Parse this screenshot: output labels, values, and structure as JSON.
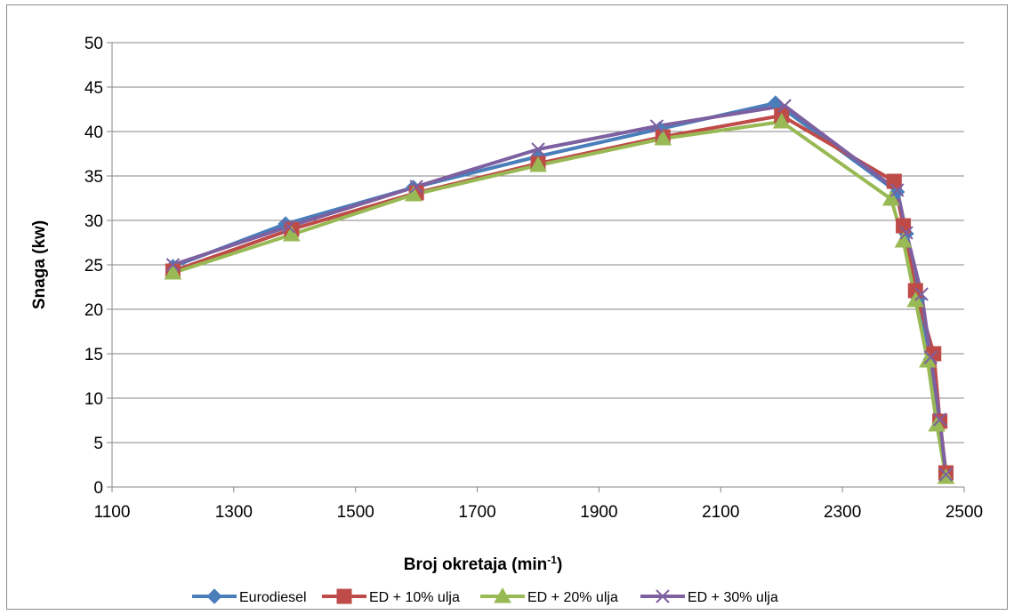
{
  "chart_data": {
    "type": "line",
    "title": "",
    "xlabel": "Broj okretaja (min",
    "xlabel_sup": "-1",
    "xlabel_close": ")",
    "ylabel": "Snaga (kw)",
    "xlim": [
      1100,
      2500
    ],
    "ylim": [
      0,
      50
    ],
    "x_ticks": [
      "1100",
      "1300",
      "1500",
      "1700",
      "1900",
      "2100",
      "2300",
      "2500"
    ],
    "y_ticks": [
      "0",
      "5",
      "10",
      "15",
      "20",
      "25",
      "30",
      "35",
      "40",
      "45",
      "50"
    ],
    "grid": "horizontal",
    "legend_position": "bottom",
    "series": [
      {
        "name": "Eurodiesel",
        "color": "#4a7ebb",
        "marker": "diamond",
        "points": [
          [
            1200,
            24.8
          ],
          [
            1385,
            29.6
          ],
          [
            1595,
            33.7
          ],
          [
            1800,
            37.2
          ],
          [
            2000,
            40.3
          ],
          [
            2190,
            43.2
          ],
          [
            2390,
            33.2
          ],
          [
            2405,
            28.5
          ],
          [
            2425,
            21.2
          ],
          [
            2445,
            14.4
          ],
          [
            2460,
            7.3
          ],
          [
            2470,
            1.3
          ]
        ]
      },
      {
        "name": "ED + 10% ulja",
        "color": "#be4b48",
        "marker": "square",
        "points": [
          [
            1200,
            24.3
          ],
          [
            1395,
            29.0
          ],
          [
            1600,
            33.1
          ],
          [
            1800,
            36.4
          ],
          [
            2005,
            39.4
          ],
          [
            2200,
            41.8
          ],
          [
            2385,
            34.4
          ],
          [
            2400,
            29.4
          ],
          [
            2420,
            22.1
          ],
          [
            2450,
            15.0
          ],
          [
            2460,
            7.4
          ],
          [
            2470,
            1.6
          ]
        ]
      },
      {
        "name": "ED + 20% ulja",
        "color": "#98b954",
        "marker": "triangle",
        "points": [
          [
            1200,
            24.1
          ],
          [
            1395,
            28.4
          ],
          [
            1595,
            32.9
          ],
          [
            1800,
            36.2
          ],
          [
            2005,
            39.2
          ],
          [
            2200,
            41.1
          ],
          [
            2380,
            32.4
          ],
          [
            2400,
            27.7
          ],
          [
            2420,
            21.0
          ],
          [
            2440,
            14.2
          ],
          [
            2455,
            7.0
          ],
          [
            2470,
            1.1
          ]
        ]
      },
      {
        "name": "ED + 30% ulja",
        "color": "#7d60a0",
        "marker": "x",
        "points": [
          [
            1200,
            25.0
          ],
          [
            1390,
            29.3
          ],
          [
            1600,
            33.8
          ],
          [
            1800,
            38.0
          ],
          [
            1995,
            40.6
          ],
          [
            2205,
            42.9
          ],
          [
            2390,
            33.4
          ],
          [
            2405,
            28.6
          ],
          [
            2430,
            21.7
          ],
          [
            2445,
            14.6
          ],
          [
            2460,
            7.6
          ],
          [
            2470,
            1.4
          ]
        ]
      }
    ]
  }
}
